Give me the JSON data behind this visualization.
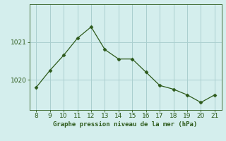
{
  "x": [
    8,
    9,
    10,
    11,
    12,
    13,
    14,
    15,
    16,
    17,
    18,
    19,
    20,
    21
  ],
  "y": [
    1019.8,
    1020.25,
    1020.65,
    1021.1,
    1021.4,
    1020.8,
    1020.55,
    1020.55,
    1020.2,
    1019.85,
    1019.75,
    1019.6,
    1019.4,
    1019.6
  ],
  "line_color": "#2d5a1b",
  "marker_color": "#2d5a1b",
  "bg_color": "#d4eeed",
  "grid_color": "#aacfcf",
  "xlabel": "Graphe pression niveau de la mer (hPa)",
  "xlabel_color": "#2d5a1b",
  "ytick_labels": [
    "1020",
    "1021"
  ],
  "ytick_values": [
    1020,
    1021
  ],
  "ylim": [
    1019.2,
    1022.0
  ],
  "xlim": [
    7.5,
    21.5
  ],
  "xticks": [
    8,
    9,
    10,
    11,
    12,
    13,
    14,
    15,
    16,
    17,
    18,
    19,
    20,
    21
  ]
}
